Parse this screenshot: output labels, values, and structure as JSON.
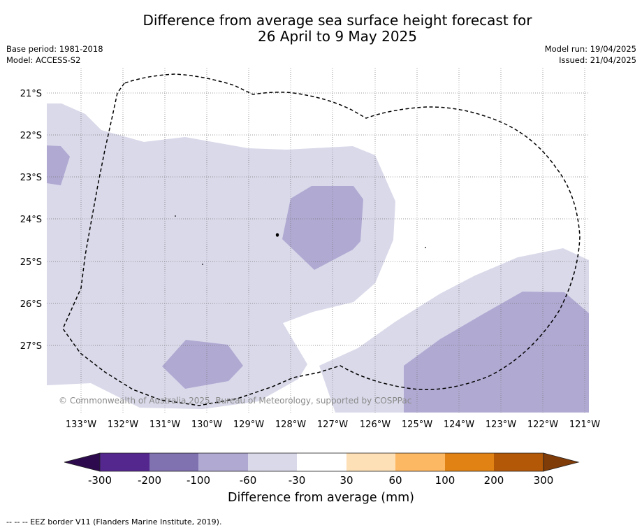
{
  "title": {
    "line1": "Difference from average sea surface height forecast for",
    "line2": "26 April to 9 May 2025"
  },
  "meta": {
    "base_period": "Base period: 1981-2018",
    "model": "Model: ACCESS-S2",
    "model_run": "Model run: 19/04/2025",
    "issued": "Issued: 21/04/2025"
  },
  "map": {
    "lat_labels": [
      "21°S",
      "22°S",
      "23°S",
      "24°S",
      "25°S",
      "26°S",
      "27°S"
    ],
    "lon_labels": [
      "133°W",
      "132°W",
      "131°W",
      "130°W",
      "129°W",
      "128°W",
      "127°W",
      "126°W",
      "125°W",
      "124°W",
      "123°W",
      "122°W",
      "121°W"
    ],
    "copyright": "© Commonwealth of Australia 2025, Bureau of Meteorology, supported by COSPPac",
    "eez_border": "dashed"
  },
  "colorbar": {
    "title": "Difference from average (mm)",
    "tick_labels": [
      "-300",
      "-200",
      "-100",
      "-60",
      "-30",
      "30",
      "60",
      "100",
      "200",
      "300"
    ],
    "colors": [
      "#2d0a4e",
      "#54278f",
      "#8071b0",
      "#b0a9d2",
      "#d9d9ea",
      "#ffffff",
      "#fee0b6",
      "#fdb863",
      "#e08214",
      "#b35806",
      "#7f3b08"
    ]
  },
  "footnote": "--  --  -- EEZ border V11 (Flanders Marine Institute, 2019)."
}
